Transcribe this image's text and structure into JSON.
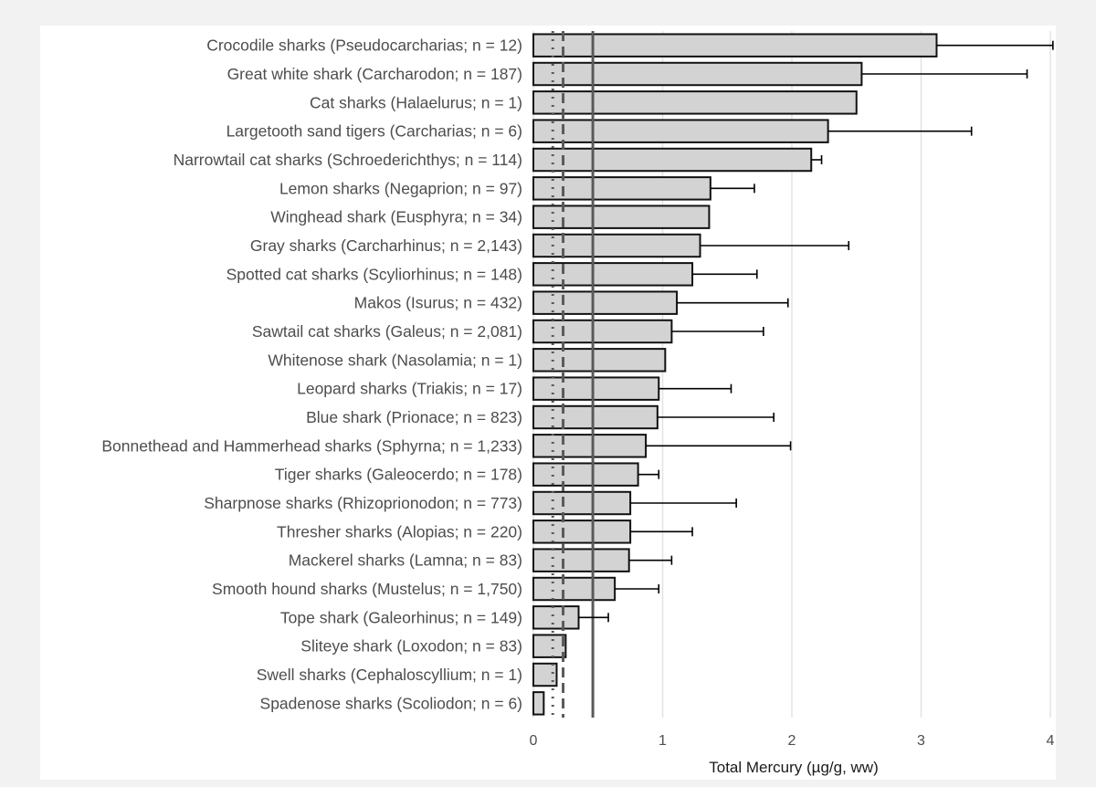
{
  "chart_data": {
    "type": "bar",
    "orientation": "horizontal",
    "categories": [
      "Crocodile sharks (Pseudocarcharias; n = 12)",
      "Great white shark (Carcharodon; n = 187)",
      "Cat sharks (Halaelurus; n = 1)",
      "Largetooth sand tigers (Carcharias; n = 6)",
      "Narrowtail cat sharks (Schroederichthys; n = 114)",
      "Lemon sharks (Negaprion; n = 97)",
      "Winghead shark (Eusphyra; n = 34)",
      "Gray sharks (Carcharhinus; n = 2,143)",
      "Spotted cat sharks (Scyliorhinus; n = 148)",
      "Makos (Isurus; n = 432)",
      "Sawtail cat sharks (Galeus; n = 2,081)",
      "Whitenose shark (Nasolamia; n = 1)",
      "Leopard sharks (Triakis; n = 17)",
      "Blue shark (Prionace; n = 823)",
      "Bonnethead and Hammerhead sharks (Sphyrna; n = 1,233)",
      "Tiger sharks (Galeocerdo; n = 178)",
      "Sharpnose sharks (Rhizoprionodon; n = 773)",
      "Thresher sharks (Alopias; n = 220)",
      "Mackerel sharks (Lamna; n = 83)",
      "Smooth hound sharks (Mustelus; n = 1,750)",
      "Tope shark (Galeorhinus; n = 149)",
      "Sliteye shark (Loxodon; n = 83)",
      "Swell sharks (Cephaloscyllium; n = 1)",
      "Spadenose sharks (Scoliodon; n = 6)"
    ],
    "values": [
      3.12,
      2.54,
      2.5,
      2.28,
      2.15,
      1.37,
      1.36,
      1.29,
      1.23,
      1.11,
      1.07,
      1.02,
      0.97,
      0.96,
      0.87,
      0.81,
      0.75,
      0.75,
      0.74,
      0.63,
      0.35,
      0.25,
      0.18,
      0.08
    ],
    "error_upper": [
      4.02,
      3.82,
      null,
      3.39,
      2.23,
      1.71,
      null,
      2.44,
      1.73,
      1.97,
      1.78,
      null,
      1.53,
      1.86,
      1.99,
      0.97,
      1.57,
      1.23,
      1.07,
      0.97,
      0.58,
      null,
      null,
      null
    ],
    "reference_lines": [
      {
        "value": 0.15,
        "style": "dotted"
      },
      {
        "value": 0.23,
        "style": "dashed"
      },
      {
        "value": 0.46,
        "style": "solid"
      }
    ],
    "xlabel": "Total Mercury (µg/g, ww)",
    "xticks": [
      0,
      1,
      2,
      3,
      4
    ],
    "xlim": [
      0,
      4
    ],
    "grid": "vertical major",
    "colors": {
      "bar_fill": "#d3d3d3",
      "bar_stroke": "#111111",
      "reference_line": "#5a5a5a",
      "grid": "#e3e3e3"
    }
  }
}
